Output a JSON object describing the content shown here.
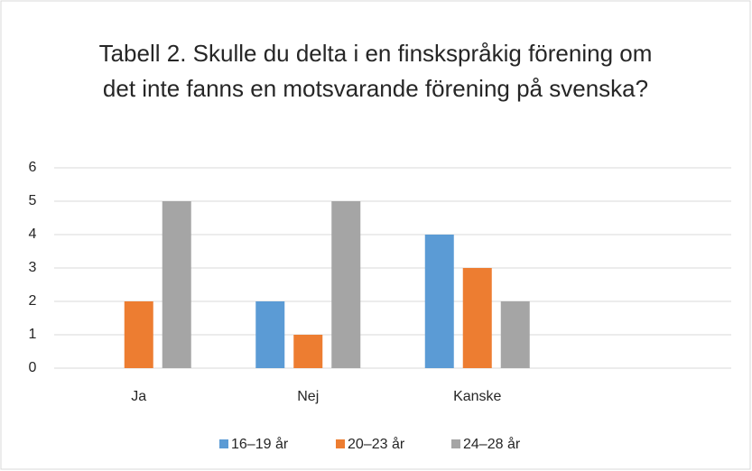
{
  "chart_data": {
    "type": "bar",
    "title": "Tabell 2. Skulle du delta i en finskspråkig förening om det inte fanns en motsvarande förening på svenska?",
    "categories": [
      "Ja",
      "Nej",
      "Kanske",
      null
    ],
    "series": [
      {
        "name": "16–19 år",
        "color": "#5b9bd5",
        "values": [
          0,
          2,
          4,
          null
        ]
      },
      {
        "name": "20–23 år",
        "color": "#ed7d31",
        "values": [
          2,
          1,
          3,
          null
        ]
      },
      {
        "name": "24–28 år",
        "color": "#a5a5a5",
        "values": [
          5,
          5,
          2,
          null
        ]
      }
    ],
    "ylim": [
      0,
      6
    ],
    "yticks": [
      0,
      1,
      2,
      3,
      4,
      5,
      6
    ],
    "grid": true,
    "legend": "bottom"
  }
}
